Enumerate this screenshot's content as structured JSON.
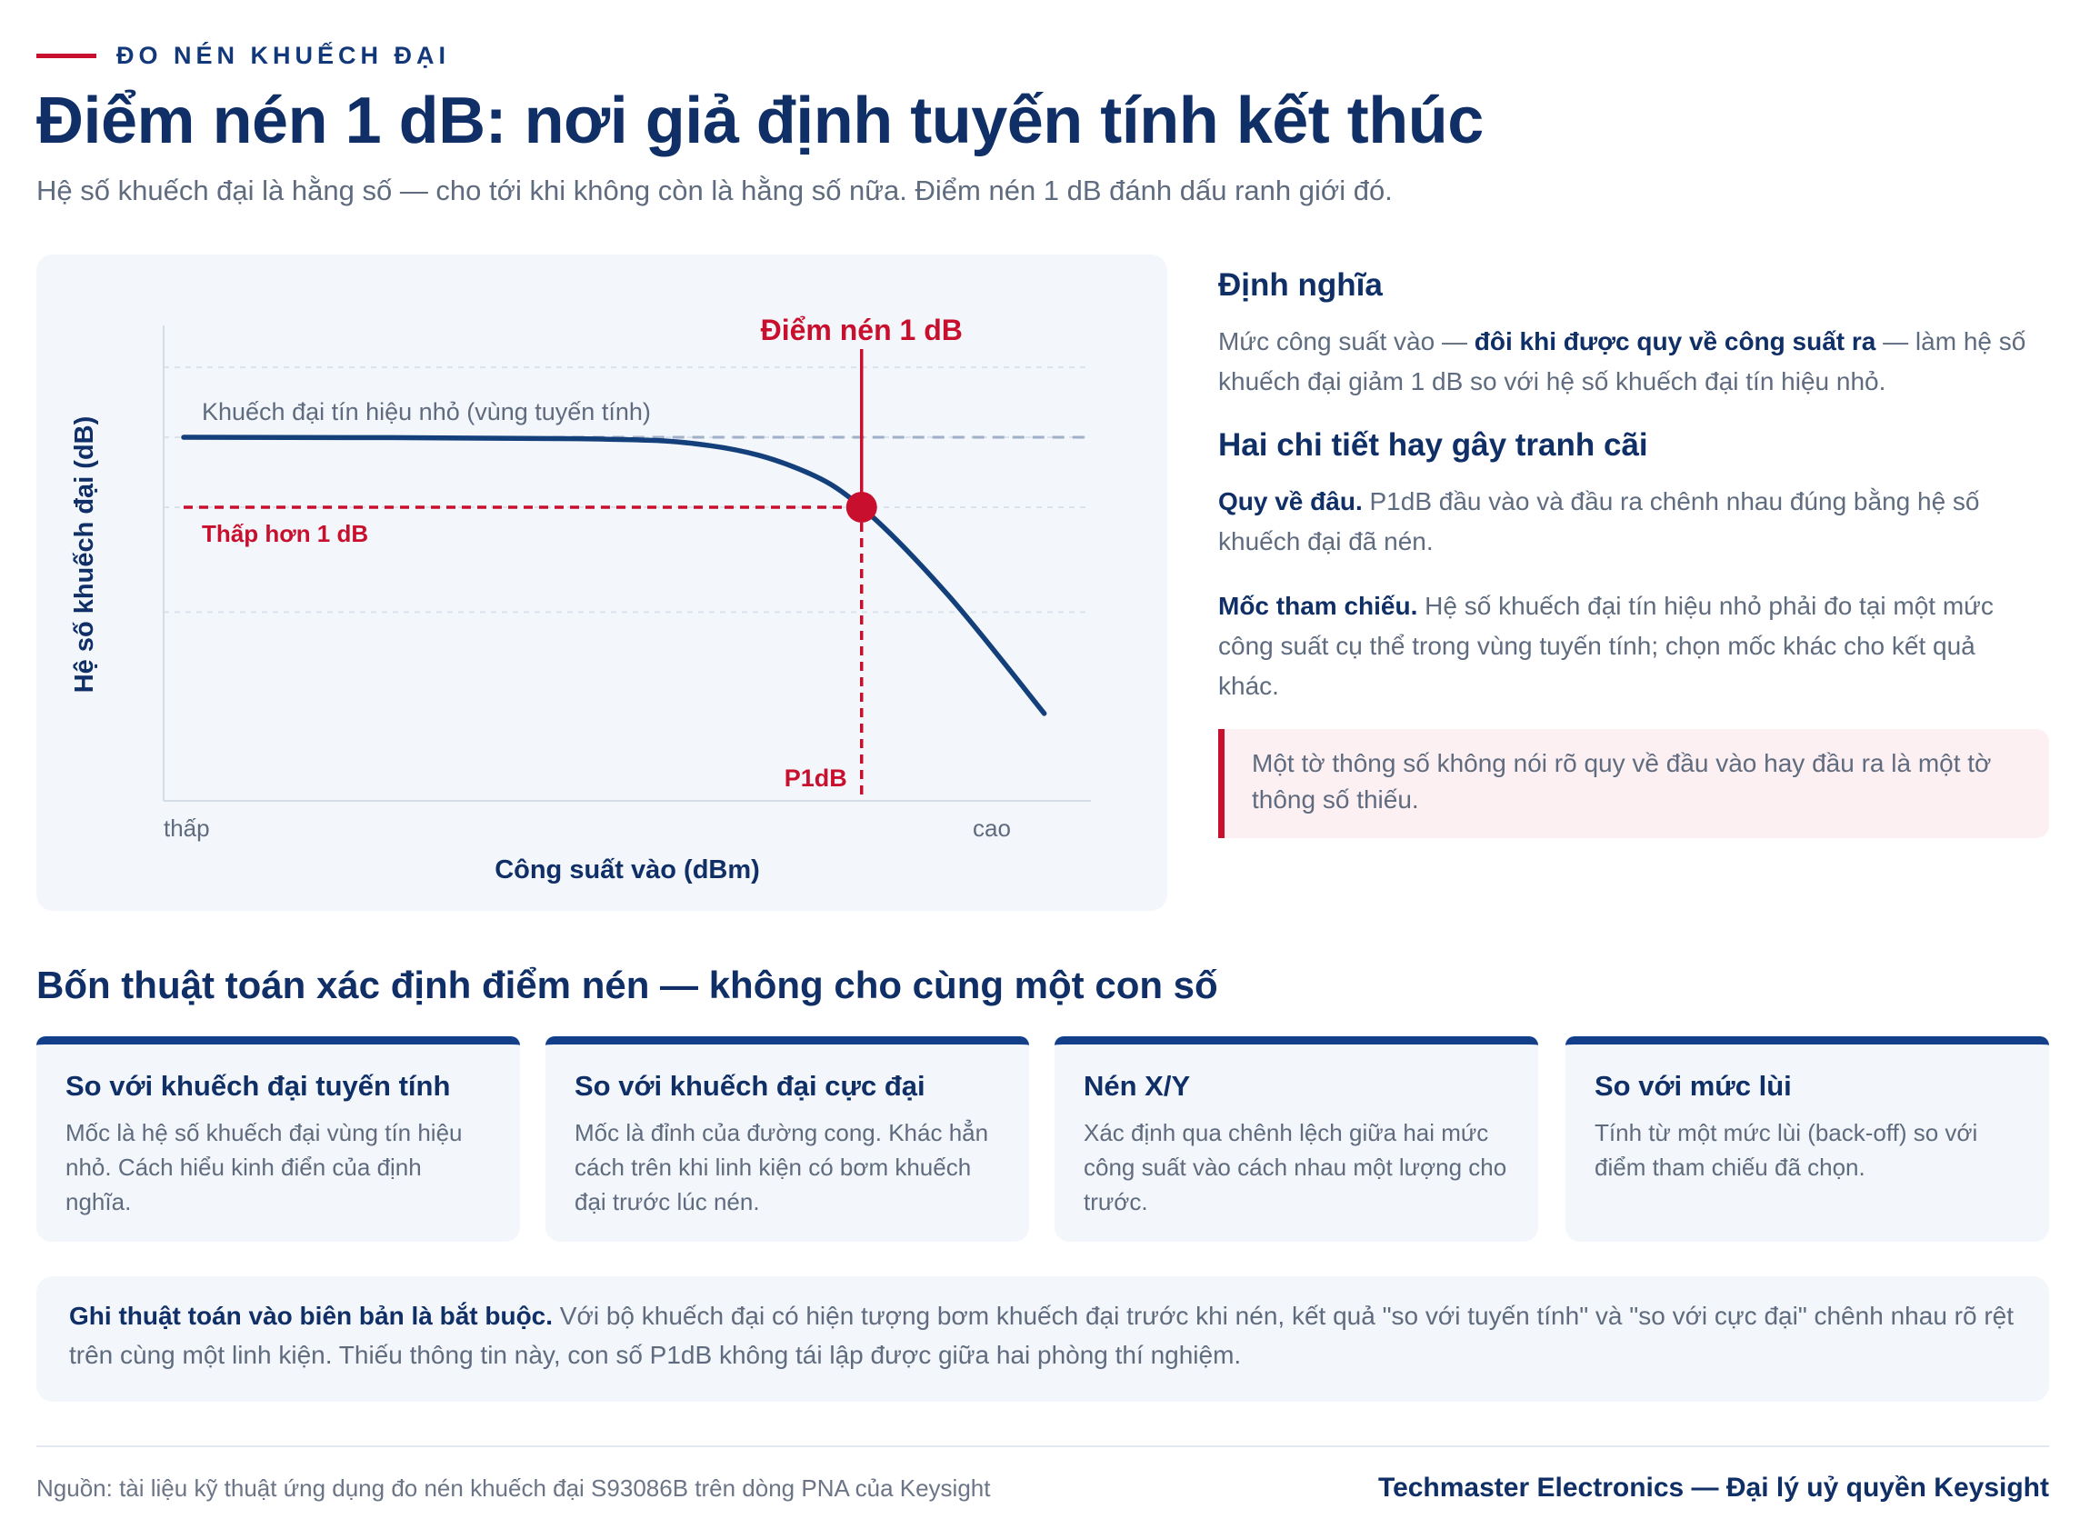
{
  "header": {
    "kicker": "ĐO NÉN KHUẾCH ĐẠI",
    "title": "Điểm nén 1 dB: nơi giả định tuyến tính kết thúc",
    "subtitle": "Hệ số khuếch đại là hằng số — cho tới khi không còn là hằng số nữa. Điểm nén 1 dB đánh dấu ranh giới đó."
  },
  "chart_data": {
    "type": "line",
    "ylabel": "Hệ số khuếch đại (dB)",
    "xlabel": "Công suất vào (dBm)",
    "x_tick_labels": [
      "thấp",
      "cao"
    ],
    "annotations": {
      "point_label": "Điểm nén 1 dB",
      "linear_label": "Khuếch đại tín hiệu nhỏ (vùng tuyến tính)",
      "minus_label": "Thấp hơn 1 dB",
      "p1db_label": "P1dB"
    },
    "grid": true,
    "small_signal_gain_level": 0,
    "compression_level": -1,
    "ylim": [
      -5.2,
      1.6
    ],
    "xlim": [
      0,
      10
    ],
    "p1db_x": 7.72,
    "series": [
      {
        "x": [
          0,
          4.5,
          6.0,
          7.0,
          7.72,
          8.7,
          9.8
        ],
        "y": [
          0,
          -0.02,
          -0.12,
          -0.45,
          -1.0,
          -2.25,
          -3.95
        ]
      }
    ]
  },
  "definition": {
    "heading": "Định nghĩa",
    "text_a": "Mức công suất vào — ",
    "text_bold": "đôi khi được quy về công suất ra",
    "text_b": " — làm hệ số khuếch đại giảm 1 dB so với hệ số khuếch đại tín hiệu nhỏ."
  },
  "details": {
    "heading": "Hai chi tiết hay gây tranh cãi",
    "items": [
      {
        "term": "Quy về đâu.",
        "text": " P1dB đầu vào và đầu ra chênh nhau đúng bằng hệ số khuếch đại đã nén."
      },
      {
        "term": "Mốc tham chiếu.",
        "text": " Hệ số khuếch đại tín hiệu nhỏ phải đo tại một mức công suất cụ thể trong vùng tuyến tính; chọn mốc khác cho kết quả khác."
      }
    ],
    "callout": "Một tờ thông số không nói rõ quy về đầu vào hay đầu ra là một tờ thông số thiếu."
  },
  "algorithms": {
    "heading": "Bốn thuật toán xác định điểm nén — không cho cùng một con số",
    "cards": [
      {
        "title": "So với khuếch đại tuyến tính",
        "text": "Mốc là hệ số khuếch đại vùng tín hiệu nhỏ. Cách hiểu kinh điển của định nghĩa."
      },
      {
        "title": "So với khuếch đại cực đại",
        "text": "Mốc là đỉnh của đường cong. Khác hẳn cách trên khi linh kiện có bơm khuếch đại trước lúc nén."
      },
      {
        "title": "Nén X/Y",
        "text": "Xác định qua chênh lệch giữa hai mức công suất vào cách nhau một lượng cho trước."
      },
      {
        "title": "So với mức lùi",
        "text": "Tính từ một mức lùi (back-off) so với điểm tham chiếu đã chọn."
      }
    ]
  },
  "note": {
    "bold": "Ghi thuật toán vào biên bản là bắt buộc.",
    "text": " Với bộ khuếch đại có hiện tượng bơm khuếch đại trước khi nén, kết quả \"so với tuyến tính\" và \"so với cực đại\" chênh nhau rõ rệt trên cùng một linh kiện. Thiếu thông tin này, con số P1dB không tái lập được giữa hai phòng thí nghiệm."
  },
  "footer": {
    "source": "Nguồn: tài liệu kỹ thuật ứng dụng đo nén khuếch đại S93086B trên dòng PNA của Keysight",
    "brand": "Techmaster Electronics — Đại lý uỷ quyền Keysight"
  },
  "colors": {
    "navy": "#0f2f66",
    "red": "#c8102e",
    "muted": "#5f6b7e",
    "panel": "#f3f6fb"
  }
}
